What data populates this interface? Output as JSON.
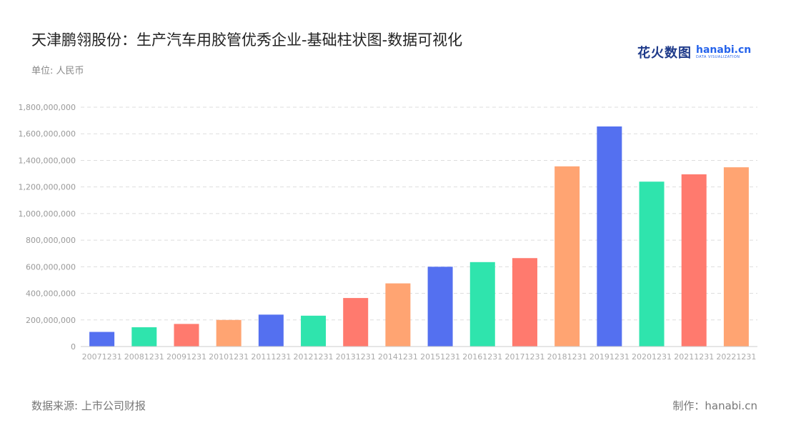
{
  "header": {
    "title": "天津鹏翎股份：生产汽车用胶管优秀企业-基础柱状图-数据可视化",
    "unit": "单位: 人民币"
  },
  "logo": {
    "name_cn": "花火数图",
    "name_en": "hanabi.cn",
    "tagline": "DATA VISUALIZATION"
  },
  "footer": {
    "source": "数据来源: 上市公司财报",
    "maker": "制作：hanabi.cn"
  },
  "colors": {
    "palette": [
      "#5470f0",
      "#2fe4ad",
      "#ff7a6e",
      "#ffa472"
    ],
    "grid": "#dddddd",
    "axis": "#cccccc"
  },
  "chart_data": {
    "type": "bar",
    "categories": [
      "20071231",
      "20081231",
      "20091231",
      "20101231",
      "20111231",
      "20121231",
      "20131231",
      "20141231",
      "20151231",
      "20161231",
      "20171231",
      "20181231",
      "20191231",
      "20201231",
      "20211231",
      "20221231"
    ],
    "values": [
      110000000,
      145000000,
      170000000,
      200000000,
      240000000,
      232000000,
      365000000,
      475000000,
      600000000,
      635000000,
      665000000,
      1355000000,
      1655000000,
      1240000000,
      1295000000,
      1348000000
    ],
    "yticks": [
      "0",
      "200,000,000",
      "400,000,000",
      "600,000,000",
      "800,000,000",
      "1,000,000,000",
      "1,200,000,000",
      "1,400,000,000",
      "1,600,000,000",
      "1,800,000,000"
    ],
    "ylim": [
      0,
      1800000000
    ],
    "grid": true,
    "legend": "none"
  }
}
